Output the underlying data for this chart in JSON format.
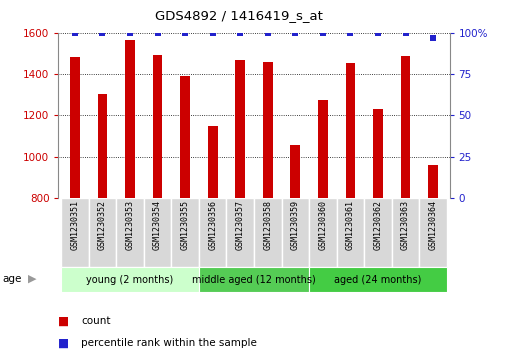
{
  "title": "GDS4892 / 1416419_s_at",
  "samples": [
    "GSM1230351",
    "GSM1230352",
    "GSM1230353",
    "GSM1230354",
    "GSM1230355",
    "GSM1230356",
    "GSM1230357",
    "GSM1230358",
    "GSM1230359",
    "GSM1230360",
    "GSM1230361",
    "GSM1230362",
    "GSM1230363",
    "GSM1230364"
  ],
  "counts": [
    1480,
    1305,
    1565,
    1490,
    1390,
    1150,
    1470,
    1460,
    1055,
    1275,
    1455,
    1230,
    1485,
    958
  ],
  "percentile_ranks": [
    100,
    100,
    100,
    100,
    100,
    100,
    100,
    100,
    100,
    100,
    100,
    100,
    100,
    97
  ],
  "ylim_left": [
    800,
    1600
  ],
  "ylim_right": [
    0,
    100
  ],
  "yticks_left": [
    800,
    1000,
    1200,
    1400,
    1600
  ],
  "yticks_right": [
    0,
    25,
    50,
    75,
    100
  ],
  "bar_color": "#cc0000",
  "dot_color": "#2222cc",
  "bar_width": 0.35,
  "groups": [
    {
      "label": "young (2 months)",
      "start": 0,
      "end": 5,
      "color": "#ccffcc"
    },
    {
      "label": "middle aged (12 months)",
      "start": 5,
      "end": 9,
      "color": "#66dd66"
    },
    {
      "label": "aged (24 months)",
      "start": 9,
      "end": 14,
      "color": "#44cc44"
    }
  ],
  "legend_count": "count",
  "legend_percentile": "percentile rank within the sample",
  "background_color": "#ffffff"
}
